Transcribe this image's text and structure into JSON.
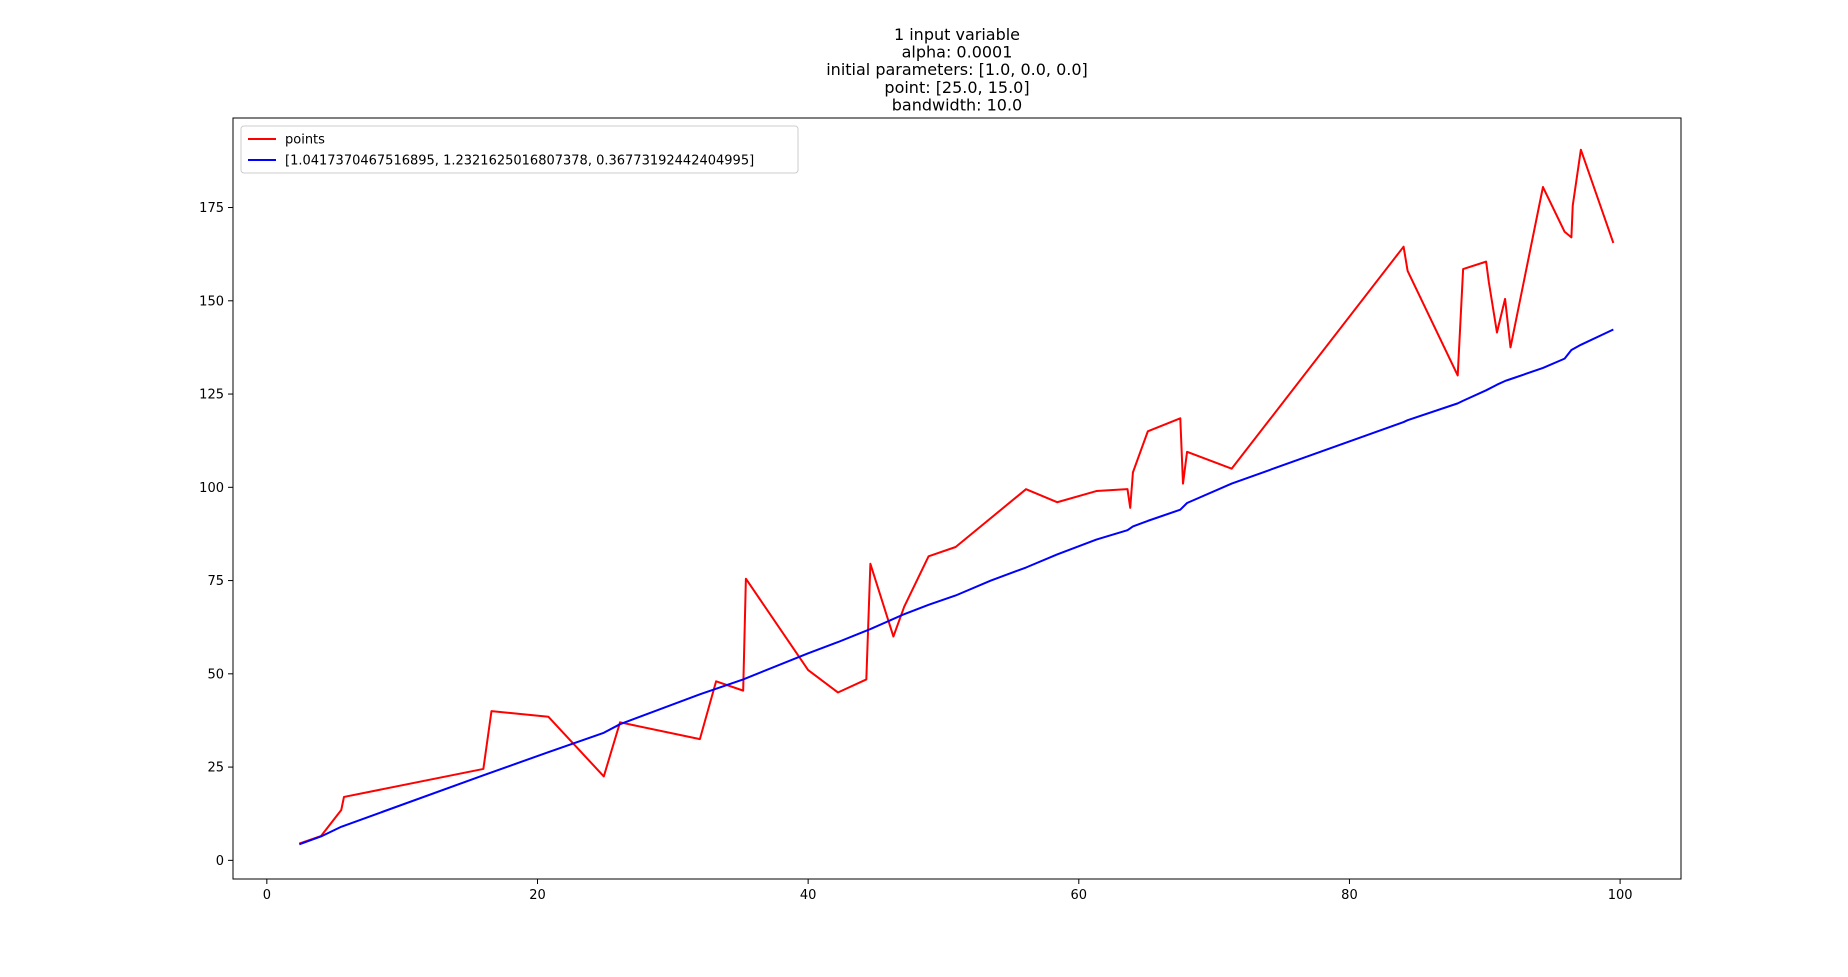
{
  "chart_data": {
    "type": "line",
    "title_lines": [
      "1 input variable",
      "alpha: 0.0001",
      "initial parameters: [1.0, 0.0, 0.0]",
      "point: [25.0, 15.0]",
      "bandwidth: 10.0"
    ],
    "xlabel": "",
    "ylabel": "",
    "xlim": [
      -2.5,
      104.5
    ],
    "ylim": [
      -5,
      199
    ],
    "x_ticks": [
      0,
      20,
      40,
      60,
      80,
      100
    ],
    "y_ticks": [
      0,
      25,
      50,
      75,
      100,
      125,
      150,
      175
    ],
    "grid": false,
    "legend_position": "top-left",
    "series": [
      {
        "name": "points",
        "color": "#ff0000",
        "points": [
          [
            2.4,
            4.5
          ],
          [
            4.0,
            6.5
          ],
          [
            5.5,
            13.5
          ],
          [
            5.7,
            17.0
          ],
          [
            16.0,
            24.5
          ],
          [
            16.6,
            40.0
          ],
          [
            20.8,
            38.5
          ],
          [
            24.9,
            22.5
          ],
          [
            26.1,
            37.0
          ],
          [
            32.0,
            32.5
          ],
          [
            33.2,
            48.0
          ],
          [
            35.2,
            45.5
          ],
          [
            35.4,
            75.5
          ],
          [
            40.0,
            51.0
          ],
          [
            42.2,
            45.0
          ],
          [
            44.3,
            48.5
          ],
          [
            44.6,
            79.5
          ],
          [
            46.3,
            60.0
          ],
          [
            47.1,
            68.0
          ],
          [
            48.9,
            81.5
          ],
          [
            50.9,
            84.0
          ],
          [
            56.1,
            99.5
          ],
          [
            58.4,
            96.0
          ],
          [
            61.3,
            99.0
          ],
          [
            63.6,
            99.5
          ],
          [
            63.8,
            94.5
          ],
          [
            64.0,
            104.0
          ],
          [
            65.1,
            115.0
          ],
          [
            67.5,
            118.5
          ],
          [
            67.7,
            101.0
          ],
          [
            68.0,
            109.5
          ],
          [
            71.3,
            105.0
          ],
          [
            84.0,
            164.5
          ],
          [
            84.3,
            158.0
          ],
          [
            88.0,
            130.0
          ],
          [
            88.4,
            158.5
          ],
          [
            90.1,
            160.5
          ],
          [
            90.3,
            155.0
          ],
          [
            90.9,
            141.5
          ],
          [
            91.5,
            150.5
          ],
          [
            91.9,
            137.5
          ],
          [
            94.3,
            180.5
          ],
          [
            95.9,
            168.5
          ],
          [
            96.4,
            167.0
          ],
          [
            96.5,
            175.5
          ],
          [
            97.1,
            190.5
          ],
          [
            99.5,
            165.5
          ]
        ]
      },
      {
        "name": "[1.0417370467516895, 1.2321625016807378, 0.36773192442404995]",
        "color": "#0000ff",
        "points": [
          [
            2.4,
            4.3
          ],
          [
            4.0,
            6.4
          ],
          [
            5.5,
            9.0
          ],
          [
            16.0,
            22.8
          ],
          [
            20.8,
            29.0
          ],
          [
            24.9,
            34.2
          ],
          [
            26.1,
            36.5
          ],
          [
            32.0,
            44.5
          ],
          [
            35.2,
            48.5
          ],
          [
            40.0,
            55.5
          ],
          [
            42.2,
            58.5
          ],
          [
            44.6,
            62.0
          ],
          [
            47.1,
            66.0
          ],
          [
            48.9,
            68.5
          ],
          [
            50.9,
            71.0
          ],
          [
            53.5,
            75.0
          ],
          [
            56.1,
            78.5
          ],
          [
            58.4,
            82.0
          ],
          [
            61.3,
            86.0
          ],
          [
            63.6,
            88.5
          ],
          [
            64.0,
            89.5
          ],
          [
            65.1,
            91.0
          ],
          [
            67.5,
            94.0
          ],
          [
            68.0,
            95.8
          ],
          [
            71.3,
            101.0
          ],
          [
            84.0,
            117.5
          ],
          [
            84.3,
            118.0
          ],
          [
            88.0,
            122.5
          ],
          [
            88.4,
            123.2
          ],
          [
            90.1,
            126.0
          ],
          [
            90.9,
            127.5
          ],
          [
            91.5,
            128.5
          ],
          [
            91.9,
            129.0
          ],
          [
            94.3,
            132.0
          ],
          [
            95.9,
            134.5
          ],
          [
            96.4,
            136.8
          ],
          [
            97.1,
            138.2
          ],
          [
            99.5,
            142.3
          ]
        ]
      }
    ]
  }
}
